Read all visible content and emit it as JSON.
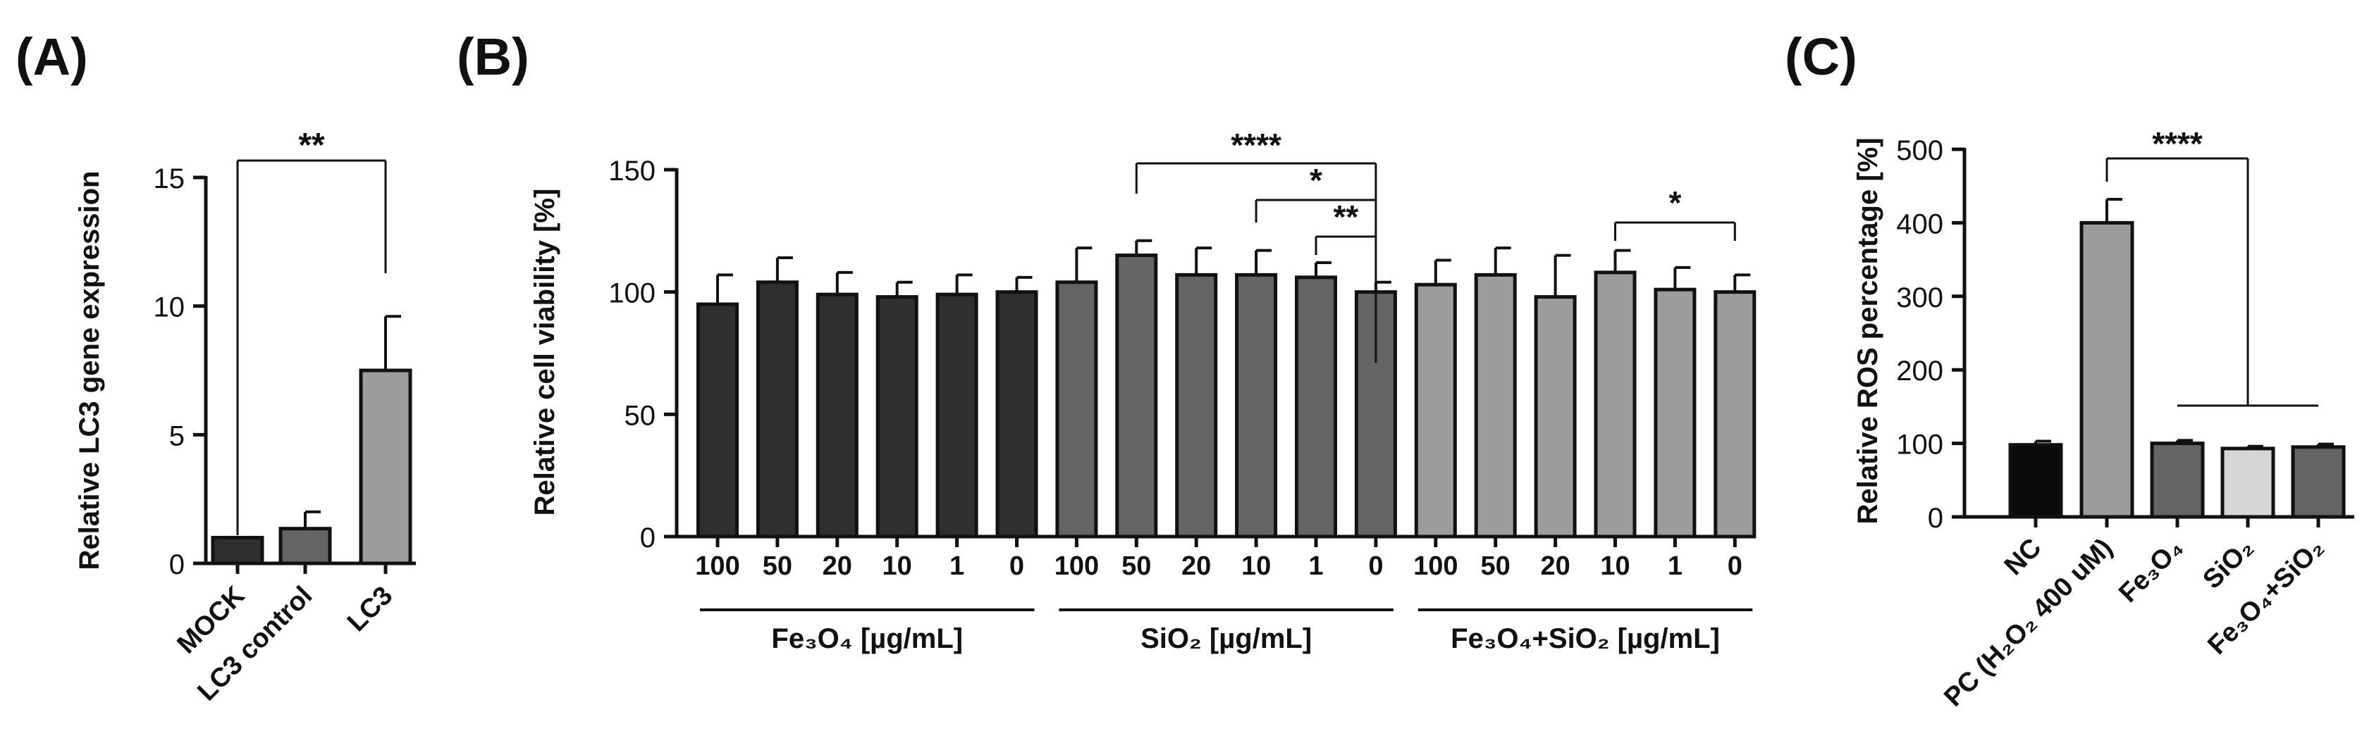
{
  "panels": [
    {
      "label": "(A)"
    },
    {
      "label": "(B)"
    },
    {
      "label": "(C)"
    }
  ],
  "colors": {
    "dark": "#2f2f2f",
    "mid": "#646464",
    "light": "#9c9c9c",
    "black": "#0a0a0a",
    "lightest": "#d6d6d6",
    "axis": "#111111"
  },
  "chart_data": [
    {
      "panel": "(A)",
      "type": "bar",
      "ylabel": "Relative LC3 gene expression",
      "xlabel": "",
      "ylim": [
        0,
        15
      ],
      "yticks": [
        "0",
        "5",
        "10",
        "15"
      ],
      "categories": [
        "MOCK",
        "LC3 control",
        "LC3"
      ],
      "values": [
        1.0,
        1.35,
        7.5
      ],
      "errors": [
        0,
        0.65,
        2.1
      ],
      "bar_colors": [
        "#2f2f2f",
        "#646464",
        "#9c9c9c"
      ],
      "significance": [
        {
          "from": "MOCK",
          "to": "LC3",
          "label": "**"
        }
      ]
    },
    {
      "panel": "(B)",
      "type": "bar",
      "ylabel": "Relative cell viability [%]",
      "ylim": [
        0,
        150
      ],
      "yticks": [
        "0",
        "50",
        "100",
        "150"
      ],
      "categories": [
        "100",
        "50",
        "20",
        "10",
        "1",
        "0",
        "100",
        "50",
        "20",
        "10",
        "1",
        "0",
        "100",
        "50",
        "20",
        "10",
        "1",
        "0"
      ],
      "groups": [
        {
          "name": "Fe3O4",
          "label": "Fe₃O₄ [µg/mL]",
          "color": "#2f2f2f",
          "values": [
            95,
            104,
            99,
            98,
            99,
            100
          ],
          "errors": [
            12,
            10,
            9,
            6,
            8,
            6
          ]
        },
        {
          "name": "SiO2",
          "label": "SiO₂ [µg/mL]",
          "color": "#646464",
          "values": [
            104,
            115,
            107,
            107,
            106,
            100
          ],
          "errors": [
            14,
            6,
            11,
            10,
            6,
            4
          ]
        },
        {
          "name": "Fe3O4+SiO2",
          "label": "Fe₃O₄+SiO₂ [µg/mL]",
          "color": "#9c9c9c",
          "values": [
            103,
            107,
            98,
            108,
            101,
            100
          ],
          "errors": [
            10,
            11,
            17,
            9,
            9,
            7
          ]
        }
      ],
      "significance": [
        {
          "label": "****",
          "note": "SiO2 50 vs SiO2 0"
        },
        {
          "label": "*",
          "note": "SiO2 10 vs SiO2 0"
        },
        {
          "label": "**",
          "note": "SiO2 1 vs SiO2 0"
        },
        {
          "label": "*",
          "note": "Fe3O4+SiO2 10 vs Fe3O4+SiO2 0"
        }
      ]
    },
    {
      "panel": "(C)",
      "type": "bar",
      "ylabel": "Relative ROS percentage [%]",
      "ylim": [
        0,
        500
      ],
      "yticks": [
        "0",
        "100",
        "200",
        "300",
        "400",
        "500"
      ],
      "categories": [
        "NC",
        "PC (H₂O₂ 400 uM)",
        "Fe₃O₄",
        "SiO₂",
        "Fe₃O₄+SiO₂"
      ],
      "values": [
        98,
        400,
        100,
        93,
        95
      ],
      "errors": [
        5,
        32,
        4,
        3,
        4
      ],
      "bar_colors": [
        "#0a0a0a",
        "#9c9c9c",
        "#646464",
        "#d6d6d6",
        "#646464"
      ],
      "significance": [
        {
          "from": "PC (H₂O₂ 400 uM)",
          "to": "Fe₃O₄, SiO₂, Fe₃O₄+SiO₂",
          "label": "****"
        }
      ]
    }
  ]
}
